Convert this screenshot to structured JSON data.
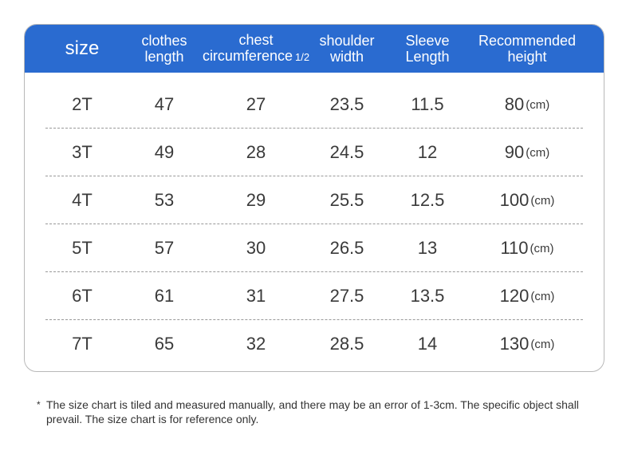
{
  "header": {
    "size": "size",
    "clothes_length": [
      "clothes",
      "length"
    ],
    "chest": [
      "chest",
      "circumference"
    ],
    "chest_suffix": "1/2",
    "shoulder": [
      "shoulder",
      "width"
    ],
    "sleeve": [
      "Sleeve",
      "Length"
    ],
    "height": [
      "Recommended",
      "height"
    ]
  },
  "unit": "(cm)",
  "rows": [
    {
      "size": "2T",
      "length": "47",
      "chest": "27",
      "shoulder": "23.5",
      "sleeve": "11.5",
      "height": "80"
    },
    {
      "size": "3T",
      "length": "49",
      "chest": "28",
      "shoulder": "24.5",
      "sleeve": "12",
      "height": "90"
    },
    {
      "size": "4T",
      "length": "53",
      "chest": "29",
      "shoulder": "25.5",
      "sleeve": "12.5",
      "height": "100"
    },
    {
      "size": "5T",
      "length": "57",
      "chest": "30",
      "shoulder": "26.5",
      "sleeve": "13",
      "height": "110"
    },
    {
      "size": "6T",
      "length": "61",
      "chest": "31",
      "shoulder": "27.5",
      "sleeve": "13.5",
      "height": "120"
    },
    {
      "size": "7T",
      "length": "65",
      "chest": "32",
      "shoulder": "28.5",
      "sleeve": "14",
      "height": "130"
    }
  ],
  "note": {
    "star": "*",
    "text": "The size chart is tiled and measured manually, and there may be an error of 1-3cm. The specific object shall prevail. The size chart is for reference only."
  },
  "colors": {
    "header_bg": "#2a6bd0",
    "header_text": "#ffffff",
    "border": "#b8b8b8",
    "separator": "#999999"
  }
}
